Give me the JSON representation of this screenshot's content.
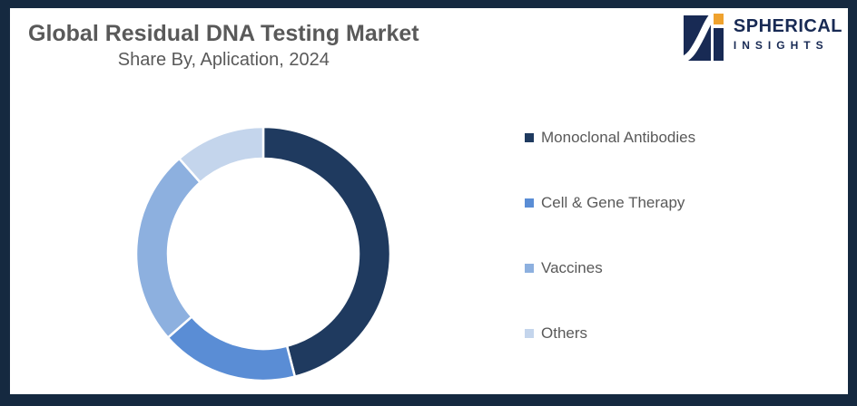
{
  "frame": {
    "border_color": "#152940",
    "background_color": "#FFFFFF"
  },
  "header": {
    "title": "Global Residual DNA Testing Market",
    "subtitle": "Share By, Aplication, 2024"
  },
  "logo": {
    "line1": "SPHERICAL",
    "line2": "INSIGHTS",
    "navy_color": "#182A54",
    "orange_color": "#EFA22E"
  },
  "chart_data": {
    "type": "pie",
    "variant": "donut",
    "title": "Global Residual DNA Testing Market",
    "subtitle": "Share By, Aplication, 2024",
    "start_angle_deg": 0,
    "direction": "clockwise",
    "legend_position": "right",
    "values_are_percent_estimates": true,
    "series": [
      {
        "name": "Monoclonal Antibodies",
        "value": 46,
        "color": "#1F3A5F"
      },
      {
        "name": "Cell & Gene Therapy",
        "value": 17.5,
        "color": "#5A8DD5"
      },
      {
        "name": "Vaccines",
        "value": 25,
        "color": "#8DB0DF"
      },
      {
        "name": "Others",
        "value": 11.5,
        "color": "#C4D5EC"
      }
    ]
  }
}
